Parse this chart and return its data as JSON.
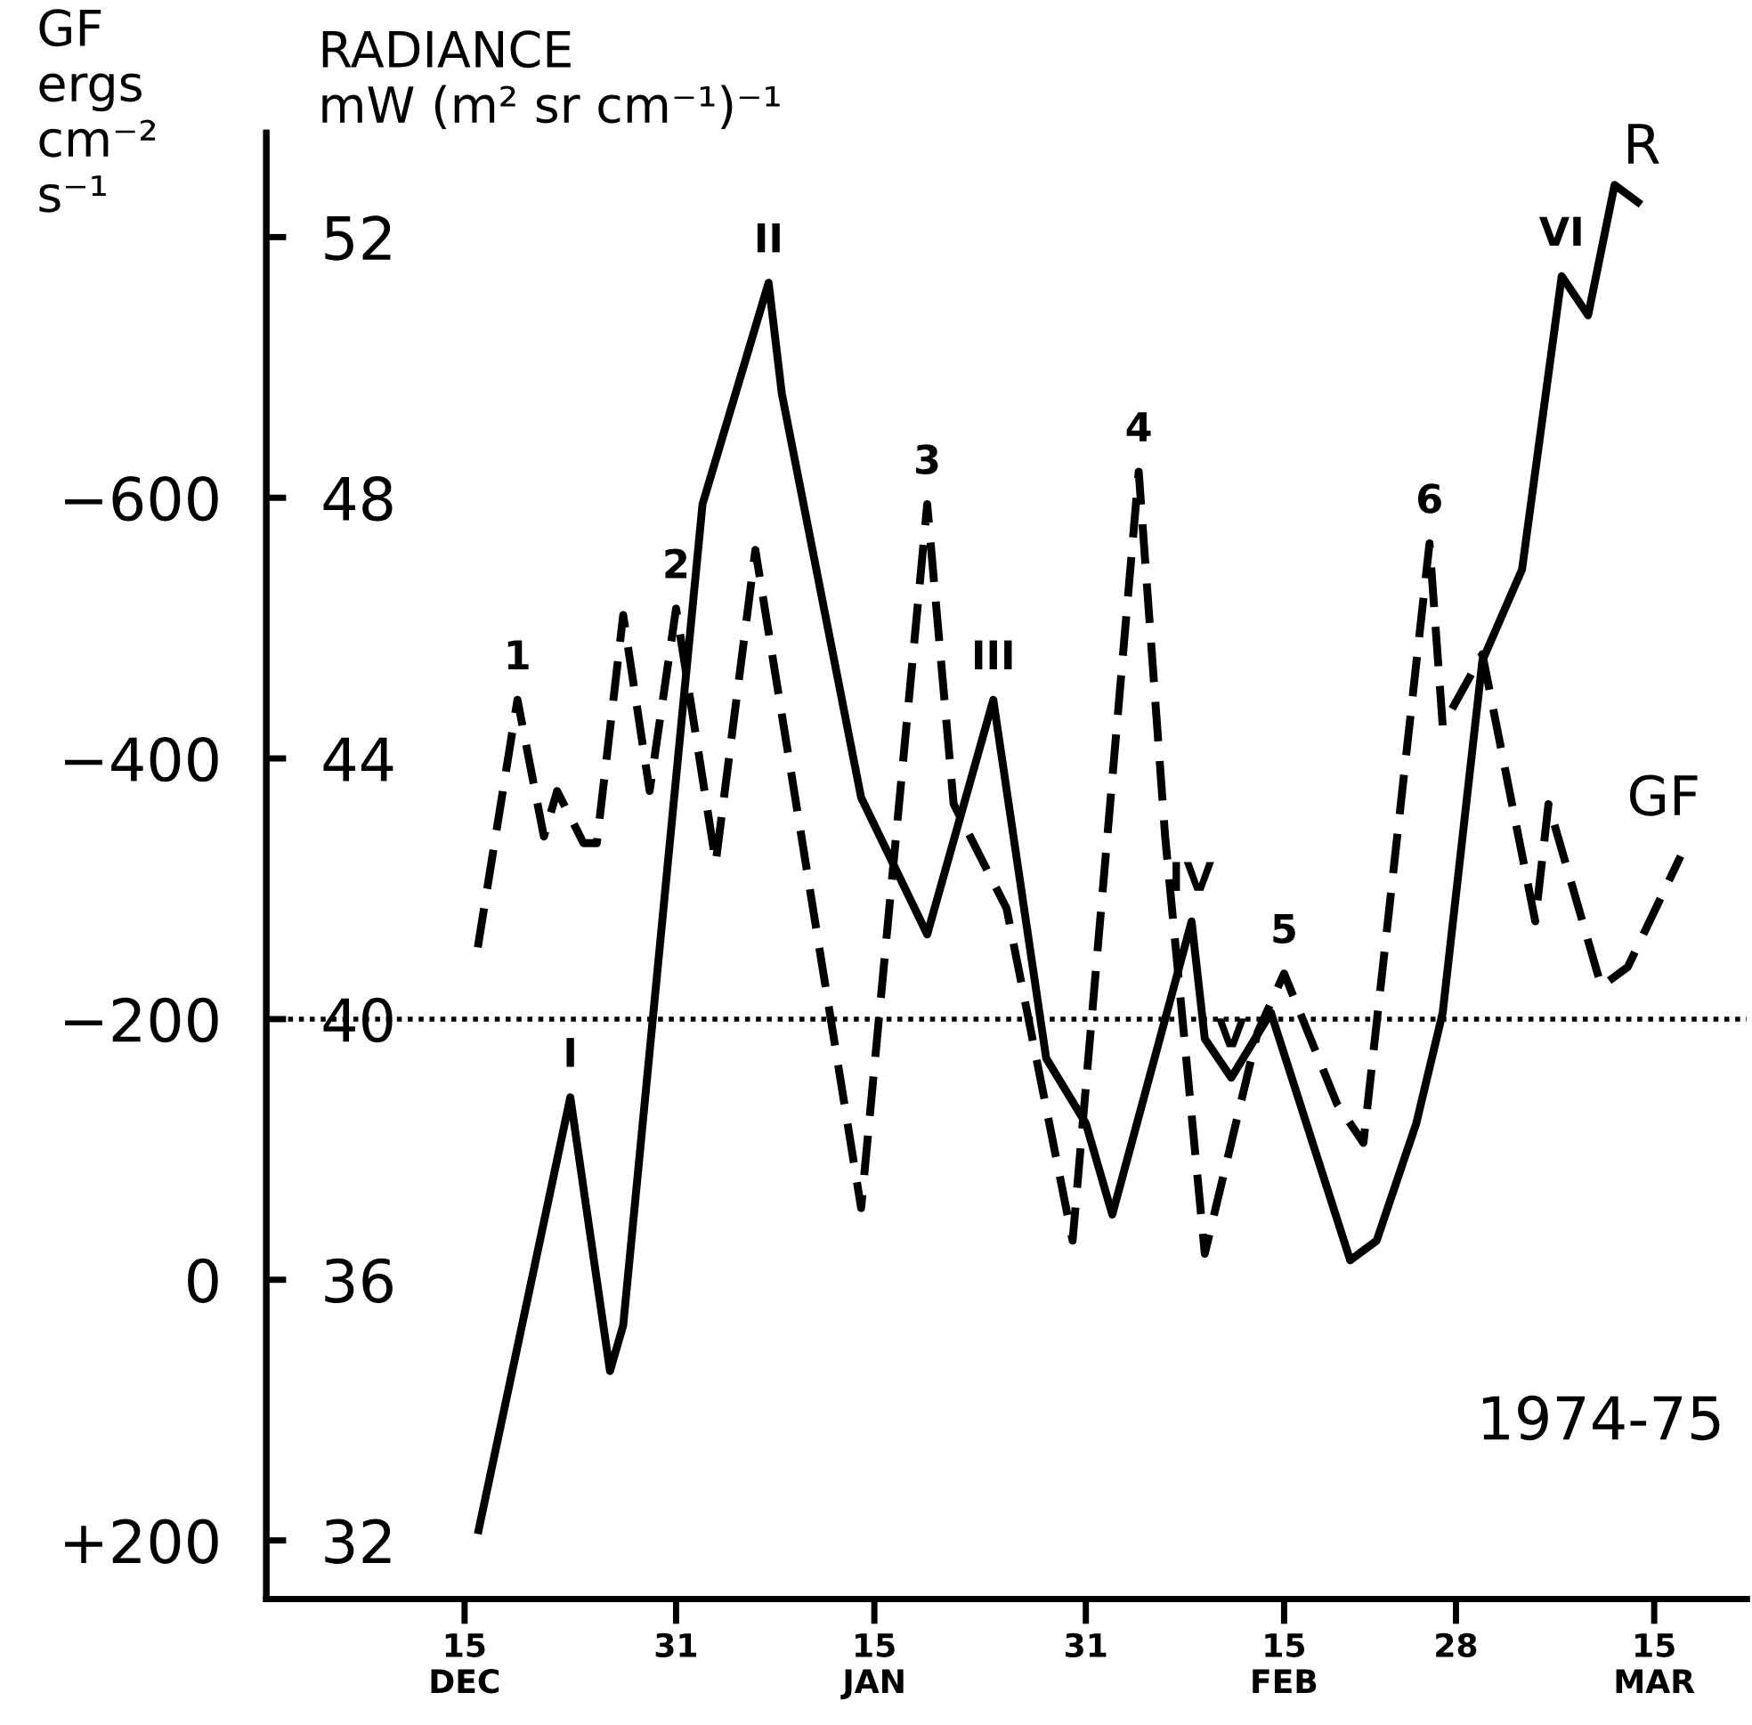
{
  "chart_data": {
    "type": "line",
    "ylabel": "RADIANCE\nmW (m² sr cm⁻¹)⁻¹",
    "y2label": "GF\nergs\ncm⁻²\ns⁻¹",
    "xlim": [
      "1974-11-30",
      "1975-03-22"
    ],
    "xticks": [
      {
        "value": "1974-12-15",
        "label": "15\nDEC"
      },
      {
        "value": "1974-12-31",
        "label": "31\n "
      },
      {
        "value": "1975-01-15",
        "label": "15\nJAN"
      },
      {
        "value": "1975-01-31",
        "label": "31\n "
      },
      {
        "value": "1975-02-15",
        "label": "15\nFEB"
      },
      {
        "value": "1975-02-28",
        "label": "28\n "
      },
      {
        "value": "1975-03-15",
        "label": "15\nMAR"
      }
    ],
    "ylim": [
      31.1,
      53.6
    ],
    "yticks": [
      32,
      36,
      40,
      44,
      48,
      52
    ],
    "y2lim": [
      245,
      -880
    ],
    "y2ticks": [
      {
        "value": 200,
        "label": "+200"
      },
      0,
      {
        "value": -200,
        "label": "−200"
      },
      {
        "value": -400,
        "label": "−400"
      },
      {
        "value": -600,
        "label": "−600"
      }
    ],
    "marker": "none",
    "series": [
      {
        "name": "R",
        "color": "#000000",
        "line_style": "solid",
        "x": [
          "1974-12-16",
          "1974-12-23",
          "1974-12-26",
          "1974-12-27",
          "1975-01-02",
          "1975-01-07",
          "1975-01-08",
          "1975-01-14",
          "1975-01-19",
          "1975-01-24",
          "1975-01-28",
          "1975-01-31",
          "1975-02-02",
          "1975-02-08",
          "1975-02-09",
          "1975-02-11",
          "1975-02-14",
          "1975-02-20",
          "1975-02-22",
          "1975-02-25",
          "1975-02-27",
          "1975-03-02",
          "1975-03-05",
          "1975-03-08",
          "1975-03-10",
          "1975-03-12",
          "1975-03-14"
        ],
        "values": [
          32.1,
          38.8,
          34.6,
          35.3,
          47.9,
          51.3,
          49.6,
          43.4,
          41.3,
          44.9,
          39.4,
          38.4,
          37.0,
          41.5,
          39.7,
          39.1,
          40.1,
          36.3,
          36.6,
          38.4,
          40.1,
          45.5,
          46.9,
          51.4,
          50.8,
          52.8,
          52.5
        ]
      },
      {
        "name": "GF",
        "color": "#000000",
        "line_style": "dashed",
        "axis": "y2",
        "x": [
          "1974-12-16",
          "1974-12-19",
          "1974-12-21",
          "1974-12-22",
          "1974-12-24",
          "1974-12-25",
          "1974-12-27",
          "1974-12-29",
          "1974-12-31",
          "1975-01-03",
          "1975-01-06",
          "1975-01-14",
          "1975-01-19",
          "1975-01-21",
          "1975-01-25",
          "1975-01-30",
          "1975-02-04",
          "1975-02-06",
          "1975-02-09",
          "1975-02-13",
          "1975-02-15",
          "1975-02-19",
          "1975-02-21",
          "1975-02-26",
          "1975-02-27",
          "1975-03-02",
          "1975-03-06",
          "1975-03-07",
          "1975-03-11",
          "1975-03-13",
          "1975-03-17"
        ],
        "values": [
          -255,
          -445,
          -340,
          -375,
          -335,
          -335,
          -510,
          -375,
          -515,
          -320,
          -560,
          -55,
          -595,
          -365,
          -285,
          -30,
          -620,
          -340,
          -20,
          -190,
          -235,
          -135,
          -105,
          -565,
          -425,
          -480,
          -275,
          -365,
          -225,
          -240,
          -325
        ]
      }
    ],
    "ref_lines": [
      {
        "axis": "y",
        "value": 40,
        "color": "#000000",
        "line_style": "dotted"
      }
    ],
    "annotations": [
      {
        "text": "1",
        "x": "1974-12-19",
        "y": 44.9
      },
      {
        "text": "2",
        "x": "1974-12-31",
        "y": 46.3
      },
      {
        "text": "I",
        "x": "1974-12-23",
        "y": 38.8
      },
      {
        "text": "II",
        "x": "1975-01-07",
        "y": 51.3
      },
      {
        "text": "3",
        "x": "1975-01-19",
        "y": 47.9
      },
      {
        "text": "III",
        "x": "1975-01-24",
        "y": 44.9
      },
      {
        "text": "4",
        "x": "1975-02-04",
        "y": 48.4
      },
      {
        "text": "IV",
        "x": "1975-02-08",
        "y": 41.5
      },
      {
        "text": "V",
        "x": "1975-02-11",
        "y": 39.1
      },
      {
        "text": "5",
        "x": "1975-02-15",
        "y": 40.7
      },
      {
        "text": "6",
        "x": "1975-02-26",
        "y": 47.3
      },
      {
        "text": "VI",
        "x": "1975-03-08",
        "y": 51.4
      },
      "1974-75"
    ]
  }
}
